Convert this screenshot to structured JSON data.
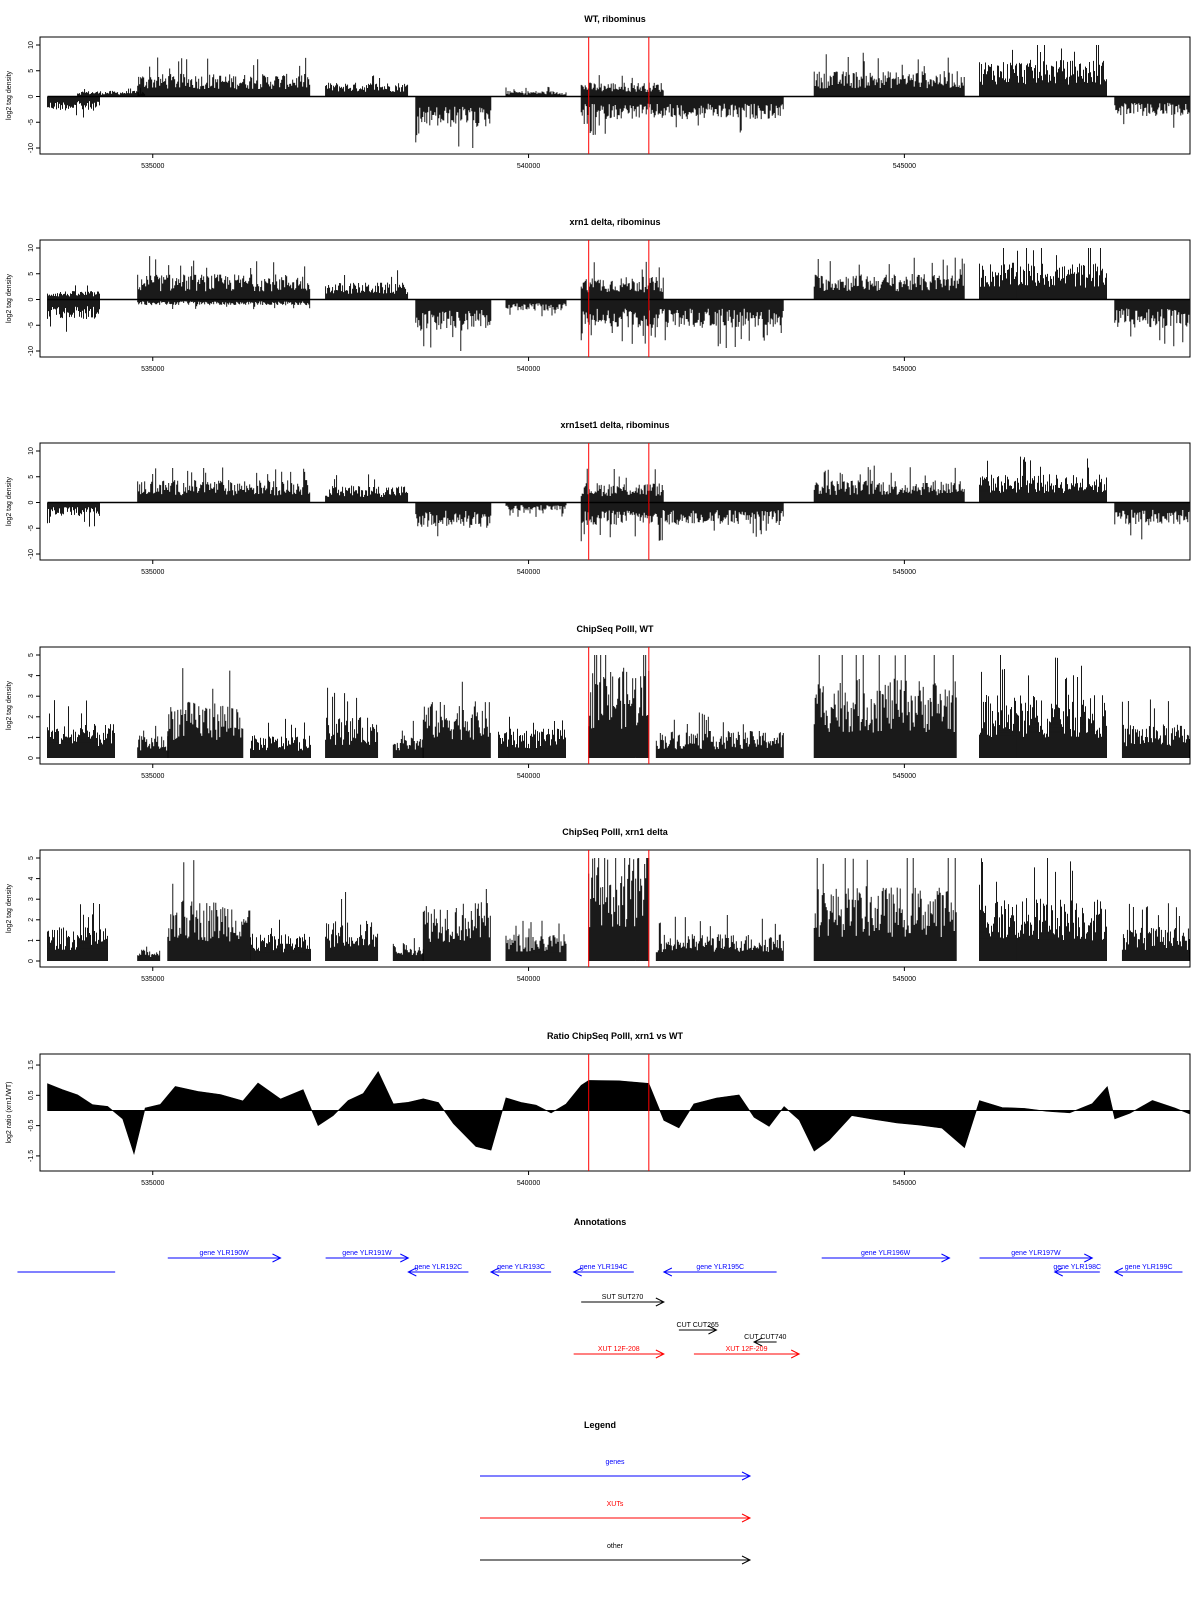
{
  "chart_data": [
    {
      "type": "bar",
      "title": "WT, ribominus",
      "ylabel": "log2 tag density",
      "xlim": [
        533500,
        548800
      ],
      "ylim": [
        -10,
        10
      ],
      "xticks": [
        535000,
        540000,
        545000
      ],
      "yticks": [
        -10,
        -5,
        0,
        5,
        10
      ],
      "ytick_labels": [
        "-10",
        "-5",
        "0",
        "5",
        "10"
      ],
      "highlight_lines": [
        540800,
        541600
      ],
      "segments": [
        {
          "start": 533600,
          "end": 534300,
          "level": -2.5
        },
        {
          "start": 534000,
          "end": 534900,
          "level": 1.0
        },
        {
          "start": 534800,
          "end": 537100,
          "level": 4.0
        },
        {
          "start": 537300,
          "end": 538400,
          "level": 2.5
        },
        {
          "start": 538500,
          "end": 539500,
          "level": -5.5
        },
        {
          "start": 539700,
          "end": 540500,
          "level": 1.0
        },
        {
          "start": 540700,
          "end": 541800,
          "level": 2.5
        },
        {
          "start": 540700,
          "end": 543400,
          "level": -4.0
        },
        {
          "start": 543800,
          "end": 545800,
          "level": 4.5
        },
        {
          "start": 546000,
          "end": 547700,
          "level": 6.5
        },
        {
          "start": 547800,
          "end": 548800,
          "level": -3.5
        }
      ]
    },
    {
      "type": "bar",
      "title": "xrn1 delta, ribominus",
      "ylabel": "log2 tag density",
      "xlim": [
        533500,
        548800
      ],
      "ylim": [
        -10,
        10
      ],
      "xticks": [
        535000,
        540000,
        545000
      ],
      "yticks": [
        -10,
        -5,
        0,
        5,
        10
      ],
      "ytick_labels": [
        "-10",
        "-5",
        "0",
        "5",
        "10"
      ],
      "highlight_lines": [
        540800,
        541600
      ],
      "segments": [
        {
          "start": 533600,
          "end": 534300,
          "level": 1.5
        },
        {
          "start": 533600,
          "end": 534300,
          "level": -3.5
        },
        {
          "start": 534800,
          "end": 537100,
          "level": 4.5
        },
        {
          "start": 534800,
          "end": 537100,
          "level": -1.0
        },
        {
          "start": 537300,
          "end": 538400,
          "level": 3.0
        },
        {
          "start": 538500,
          "end": 539500,
          "level": -5.5
        },
        {
          "start": 539700,
          "end": 540500,
          "level": -2.0
        },
        {
          "start": 540700,
          "end": 541800,
          "level": 4.0
        },
        {
          "start": 540700,
          "end": 543400,
          "level": -5.0
        },
        {
          "start": 543800,
          "end": 545800,
          "level": 4.5
        },
        {
          "start": 546000,
          "end": 547700,
          "level": 6.5
        },
        {
          "start": 547800,
          "end": 548800,
          "level": -5.0
        }
      ]
    },
    {
      "type": "bar",
      "title": "xrn1set1 delta, ribominus",
      "ylabel": "log2 tag density",
      "xlim": [
        533500,
        548800
      ],
      "ylim": [
        -10,
        10
      ],
      "xticks": [
        535000,
        540000,
        545000
      ],
      "yticks": [
        -10,
        -5,
        0,
        5,
        10
      ],
      "ytick_labels": [
        "-10",
        "-5",
        "0",
        "5",
        "10"
      ],
      "highlight_lines": [
        540800,
        541600
      ],
      "segments": [
        {
          "start": 533600,
          "end": 534300,
          "level": -2.5
        },
        {
          "start": 534800,
          "end": 537100,
          "level": 4.0
        },
        {
          "start": 537300,
          "end": 538400,
          "level": 3.0
        },
        {
          "start": 538500,
          "end": 539500,
          "level": -4.5
        },
        {
          "start": 539700,
          "end": 540500,
          "level": -1.5
        },
        {
          "start": 540700,
          "end": 541800,
          "level": 3.5
        },
        {
          "start": 540700,
          "end": 543400,
          "level": -4.0
        },
        {
          "start": 543800,
          "end": 545800,
          "level": 4.0
        },
        {
          "start": 546000,
          "end": 547700,
          "level": 5.0
        },
        {
          "start": 547800,
          "end": 548800,
          "level": -4.0
        }
      ]
    },
    {
      "type": "bar",
      "title": "ChipSeq PolII, WT",
      "ylabel": "log2 tag density",
      "xlim": [
        533500,
        548800
      ],
      "ylim": [
        0,
        5
      ],
      "xticks": [
        535000,
        540000,
        545000
      ],
      "yticks": [
        0,
        1,
        2,
        3,
        4,
        5
      ],
      "ytick_labels": [
        "0",
        "1",
        "2",
        "3",
        "4",
        "5"
      ],
      "highlight_lines": [
        540800,
        541600
      ],
      "segments": [
        {
          "start": 533600,
          "end": 534500,
          "level": 1.5
        },
        {
          "start": 534800,
          "end": 535200,
          "level": 1.0
        },
        {
          "start": 535200,
          "end": 536200,
          "level": 2.5
        },
        {
          "start": 536300,
          "end": 537100,
          "level": 1.0
        },
        {
          "start": 537300,
          "end": 538000,
          "level": 1.8
        },
        {
          "start": 538200,
          "end": 538600,
          "level": 1.0
        },
        {
          "start": 538600,
          "end": 539500,
          "level": 2.5
        },
        {
          "start": 539600,
          "end": 540500,
          "level": 1.3
        },
        {
          "start": 540800,
          "end": 541600,
          "level": 4.0
        },
        {
          "start": 541700,
          "end": 543400,
          "level": 1.2
        },
        {
          "start": 543800,
          "end": 545700,
          "level": 3.5
        },
        {
          "start": 546000,
          "end": 547700,
          "level": 2.8
        },
        {
          "start": 547900,
          "end": 548800,
          "level": 1.5
        }
      ]
    },
    {
      "type": "bar",
      "title": "ChipSeq PolII, xrn1 delta",
      "ylabel": "log2 tag density",
      "xlim": [
        533500,
        548800
      ],
      "ylim": [
        0,
        5
      ],
      "xticks": [
        535000,
        540000,
        545000
      ],
      "yticks": [
        0,
        1,
        2,
        3,
        4,
        5
      ],
      "ytick_labels": [
        "0",
        "1",
        "2",
        "3",
        "4",
        "5"
      ],
      "highlight_lines": [
        540800,
        541600
      ],
      "segments": [
        {
          "start": 533600,
          "end": 534400,
          "level": 1.5
        },
        {
          "start": 534800,
          "end": 535100,
          "level": 0.5
        },
        {
          "start": 535200,
          "end": 536300,
          "level": 2.7
        },
        {
          "start": 536300,
          "end": 537100,
          "level": 1.2
        },
        {
          "start": 537300,
          "end": 538000,
          "level": 1.8
        },
        {
          "start": 538200,
          "end": 538600,
          "level": 0.8
        },
        {
          "start": 538600,
          "end": 539500,
          "level": 2.6
        },
        {
          "start": 539700,
          "end": 540500,
          "level": 1.2
        },
        {
          "start": 540800,
          "end": 541600,
          "level": 4.7
        },
        {
          "start": 541700,
          "end": 543400,
          "level": 1.2
        },
        {
          "start": 543800,
          "end": 545700,
          "level": 3.3
        },
        {
          "start": 546000,
          "end": 547700,
          "level": 2.8
        },
        {
          "start": 547900,
          "end": 548800,
          "level": 1.5
        }
      ]
    },
    {
      "type": "area",
      "title": "Ratio ChipSeq PolII, xrn1 vs WT",
      "ylabel": "log2 ratio (xrn1/WT)",
      "xlim": [
        533500,
        548800
      ],
      "ylim": [
        -1.8,
        1.6
      ],
      "xticks": [
        535000,
        540000,
        545000
      ],
      "yticks": [
        -1.5,
        -0.5,
        0.5,
        1.5
      ],
      "ytick_labels": [
        "-1.5",
        "-0.5",
        "0.5",
        "1.5"
      ],
      "highlight_lines": [
        540800,
        541600
      ],
      "x": [
        533600,
        533800,
        534000,
        534200,
        534400,
        534600,
        534750,
        534900,
        535100,
        535300,
        535600,
        535900,
        536200,
        536400,
        536700,
        537000,
        537200,
        537400,
        537600,
        537800,
        538000,
        538200,
        538400,
        538600,
        538800,
        539000,
        539300,
        539500,
        539700,
        539900,
        540100,
        540300,
        540500,
        540700,
        540800,
        541200,
        541600,
        541800,
        542000,
        542200,
        542500,
        542800,
        543000,
        543200,
        543400,
        543600,
        543800,
        544000,
        544300,
        544600,
        544900,
        545200,
        545500,
        545800,
        546000,
        546300,
        546600,
        546900,
        547200,
        547500,
        547700,
        547800,
        548000,
        548300,
        548600,
        548800
      ],
      "y": [
        0.9,
        0.7,
        0.5,
        0.2,
        0.1,
        -0.3,
        -1.4,
        0.1,
        0.2,
        0.8,
        0.6,
        0.5,
        0.3,
        0.9,
        0.4,
        0.7,
        -0.5,
        -0.2,
        0.3,
        0.6,
        1.3,
        0.2,
        0.3,
        0.4,
        0.3,
        -0.4,
        -1.2,
        -1.3,
        0.4,
        0.3,
        0.2,
        -0.1,
        0.2,
        0.8,
        1.0,
        0.95,
        0.9,
        -0.3,
        -0.6,
        0.2,
        0.4,
        0.5,
        -0.2,
        -0.5,
        0.1,
        -0.3,
        -1.3,
        -1.0,
        -0.2,
        -0.3,
        -0.4,
        -0.5,
        -0.6,
        -1.2,
        0.3,
        0.1,
        0.05,
        0.0,
        -0.1,
        0.2,
        0.8,
        -0.3,
        -0.1,
        0.3,
        0.1,
        -0.1
      ]
    }
  ],
  "annotations": {
    "title": "Annotations",
    "genes": [
      {
        "label": "",
        "start": 533200,
        "end": 534500,
        "dir": "none",
        "row": 1
      },
      {
        "label": "gene YLR190W",
        "start": 535200,
        "end": 536700,
        "dir": "right",
        "row": 0
      },
      {
        "label": "gene YLR191W",
        "start": 537300,
        "end": 538400,
        "dir": "right",
        "row": 0
      },
      {
        "label": "gene YLR192C",
        "start": 538400,
        "end": 539200,
        "dir": "left",
        "row": 1
      },
      {
        "label": "gene YLR193C",
        "start": 539500,
        "end": 540300,
        "dir": "left",
        "row": 1
      },
      {
        "label": "gene YLR194C",
        "start": 540600,
        "end": 541400,
        "dir": "left",
        "row": 1
      },
      {
        "label": "gene YLR195C",
        "start": 541800,
        "end": 543300,
        "dir": "left",
        "row": 1
      },
      {
        "label": "gene YLR196W",
        "start": 543900,
        "end": 545600,
        "dir": "right",
        "row": 0
      },
      {
        "label": "gene YLR197W",
        "start": 546000,
        "end": 547500,
        "dir": "right",
        "row": 0
      },
      {
        "label": "gene YLR198C",
        "start": 547000,
        "end": 547600,
        "dir": "left",
        "row": 1
      },
      {
        "label": "gene YLR199C",
        "start": 547800,
        "end": 548700,
        "dir": "left",
        "row": 1
      }
    ],
    "others": [
      {
        "label": "SUT SUT270",
        "start": 540700,
        "end": 541800,
        "dir": "right",
        "row": 2
      },
      {
        "label": "CUT CUT265",
        "start": 542000,
        "end": 542500,
        "dir": "right",
        "row": 3
      },
      {
        "label": "CUT CUT740",
        "start": 543000,
        "end": 543300,
        "dir": "left",
        "row": 4
      }
    ],
    "xuts": [
      {
        "label": "XUT 12F-208",
        "start": 540600,
        "end": 541800,
        "dir": "right",
        "row": 5
      },
      {
        "label": "XUT 12F-209",
        "start": 542200,
        "end": 543600,
        "dir": "right",
        "row": 5
      }
    ]
  },
  "legend": {
    "title": "Legend",
    "items": [
      {
        "label": "genes",
        "color": "#0000ff"
      },
      {
        "label": "XUTs",
        "color": "#ff0000"
      },
      {
        "label": "other",
        "color": "#000000"
      }
    ]
  },
  "colors": {
    "gene": "#0000ff",
    "xut": "#ff0000",
    "other": "#000000",
    "highlight": "#ff0000",
    "data": "#000000"
  }
}
